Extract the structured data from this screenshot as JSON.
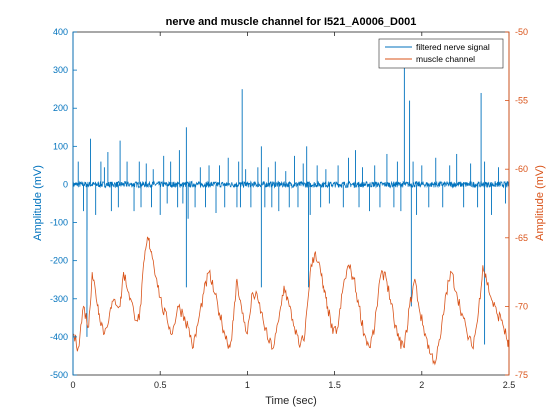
{
  "chart_data": {
    "type": "line",
    "title": "nerve and muscle channel for I521_A0006_D001",
    "xlabel": "Time (sec)",
    "ylabel_left": "Amplitude (mV)",
    "ylabel_right": "Amplitude (mV)",
    "xlim": [
      0,
      2.5
    ],
    "ylim_left": [
      -500,
      400
    ],
    "ylim_right": [
      -75,
      -50
    ],
    "xticks": [
      "0",
      "0.5",
      "1",
      "1.5",
      "2",
      "2.5"
    ],
    "yticks_left": [
      "400",
      "300",
      "200",
      "100",
      "0",
      "-100",
      "-200",
      "-300",
      "-400",
      "-500"
    ],
    "yticks_right": [
      "-50",
      "-55",
      "-60",
      "-65",
      "-70",
      "-75"
    ],
    "legend_position": "top-right",
    "grid": false,
    "colors": {
      "left_axis": "#0072BD",
      "right_axis": "#D95319",
      "frame": "#262626"
    },
    "series": [
      {
        "name": "filtered nerve signal",
        "axis": "left",
        "color": "#0072BD",
        "baseline_noise_mV": 8,
        "spikes": [
          [
            0.03,
            60
          ],
          [
            0.06,
            -70
          ],
          [
            0.08,
            -120
          ],
          [
            0.1,
            120
          ],
          [
            0.13,
            -80
          ],
          [
            0.16,
            60
          ],
          [
            0.18,
            45
          ],
          [
            0.2,
            85
          ],
          [
            0.22,
            -70
          ],
          [
            0.26,
            -60
          ],
          [
            0.27,
            115
          ],
          [
            0.31,
            60
          ],
          [
            0.35,
            -70
          ],
          [
            0.38,
            60
          ],
          [
            0.39,
            -60
          ],
          [
            0.42,
            55
          ],
          [
            0.45,
            -60
          ],
          [
            0.46,
            40
          ],
          [
            0.5,
            -80
          ],
          [
            0.52,
            75
          ],
          [
            0.54,
            -50
          ],
          [
            0.56,
            60
          ],
          [
            0.6,
            -60
          ],
          [
            0.61,
            90
          ],
          [
            0.63,
            -50
          ],
          [
            0.65,
            150
          ],
          [
            0.66,
            -90
          ],
          [
            0.7,
            -60
          ],
          [
            0.73,
            45
          ],
          [
            0.76,
            -60
          ],
          [
            0.78,
            50
          ],
          [
            0.82,
            -75
          ],
          [
            0.84,
            50
          ],
          [
            0.87,
            -60
          ],
          [
            0.89,
            70
          ],
          [
            0.94,
            -60
          ],
          [
            0.95,
            60
          ],
          [
            0.96,
            -60
          ],
          [
            0.97,
            250
          ],
          [
            0.99,
            40
          ],
          [
            1.02,
            -60
          ],
          [
            1.06,
            45
          ],
          [
            1.08,
            100
          ],
          [
            1.1,
            -60
          ],
          [
            1.12,
            45
          ],
          [
            1.14,
            -60
          ],
          [
            1.16,
            60
          ],
          [
            1.18,
            -70
          ],
          [
            1.22,
            35
          ],
          [
            1.24,
            -60
          ],
          [
            1.27,
            75
          ],
          [
            1.29,
            -60
          ],
          [
            1.32,
            55
          ],
          [
            1.34,
            100
          ],
          [
            1.36,
            -80
          ],
          [
            1.4,
            50
          ],
          [
            1.42,
            -60
          ],
          [
            1.45,
            40
          ],
          [
            1.47,
            -50
          ],
          [
            1.52,
            50
          ],
          [
            1.55,
            -60
          ],
          [
            1.58,
            70
          ],
          [
            1.62,
            90
          ],
          [
            1.64,
            -60
          ],
          [
            1.66,
            45
          ],
          [
            1.7,
            -70
          ],
          [
            1.73,
            50
          ],
          [
            1.76,
            -60
          ],
          [
            1.8,
            80
          ],
          [
            1.84,
            -60
          ],
          [
            1.86,
            60
          ],
          [
            1.88,
            -70
          ],
          [
            1.9,
            320
          ],
          [
            1.93,
            220
          ],
          [
            1.95,
            60
          ],
          [
            1.97,
            -80
          ],
          [
            2.0,
            50
          ],
          [
            2.04,
            -60
          ],
          [
            2.08,
            70
          ],
          [
            2.12,
            -60
          ],
          [
            2.16,
            50
          ],
          [
            2.2,
            80
          ],
          [
            2.24,
            -60
          ],
          [
            2.28,
            55
          ],
          [
            2.32,
            -60
          ],
          [
            2.34,
            240
          ],
          [
            2.36,
            60
          ],
          [
            2.4,
            -80
          ],
          [
            2.44,
            45
          ],
          [
            2.48,
            -50
          ]
        ],
        "large_negative_spikes": [
          [
            0.08,
            -400
          ],
          [
            0.65,
            -270
          ],
          [
            1.08,
            -270
          ],
          [
            1.35,
            -270
          ],
          [
            1.94,
            -320
          ],
          [
            2.36,
            -420
          ]
        ]
      },
      {
        "name": "muscle channel",
        "axis": "right",
        "color": "#D95319",
        "x": [
          0.0,
          0.03,
          0.06,
          0.09,
          0.11,
          0.13,
          0.15,
          0.18,
          0.21,
          0.24,
          0.27,
          0.29,
          0.32,
          0.35,
          0.38,
          0.41,
          0.43,
          0.45,
          0.48,
          0.51,
          0.54,
          0.57,
          0.6,
          0.63,
          0.66,
          0.69,
          0.72,
          0.75,
          0.78,
          0.81,
          0.84,
          0.87,
          0.9,
          0.92,
          0.94,
          0.97,
          1.0,
          1.03,
          1.06,
          1.09,
          1.12,
          1.15,
          1.18,
          1.21,
          1.24,
          1.27,
          1.3,
          1.33,
          1.36,
          1.39,
          1.42,
          1.44,
          1.46,
          1.49,
          1.52,
          1.55,
          1.58,
          1.61,
          1.64,
          1.67,
          1.7,
          1.73,
          1.76,
          1.79,
          1.82,
          1.84,
          1.87,
          1.9,
          1.93,
          1.96,
          1.99,
          2.02,
          2.05,
          2.08,
          2.11,
          2.14,
          2.17,
          2.2,
          2.23,
          2.26,
          2.29,
          2.32,
          2.35,
          2.37,
          2.4,
          2.43,
          2.46,
          2.49,
          2.5
        ],
        "values": [
          -72,
          -73,
          -70,
          -71.5,
          -67.5,
          -69,
          -70.5,
          -72,
          -70.5,
          -69.5,
          -70,
          -67.5,
          -69,
          -70.5,
          -71,
          -66.5,
          -65,
          -66,
          -68,
          -70,
          -71,
          -72,
          -70,
          -70.5,
          -71.5,
          -73,
          -71,
          -69,
          -67.5,
          -69,
          -70.5,
          -72,
          -73,
          -71,
          -68,
          -70.5,
          -72,
          -69,
          -69.5,
          -71,
          -72.5,
          -73,
          -71,
          -68.5,
          -70,
          -71.5,
          -73,
          -72,
          -67.5,
          -66,
          -67.5,
          -69,
          -70,
          -72,
          -71.5,
          -68.5,
          -67,
          -68,
          -70,
          -72,
          -73,
          -71.5,
          -68,
          -67.5,
          -69.5,
          -71,
          -72.5,
          -73,
          -70,
          -68,
          -70.5,
          -72,
          -73.5,
          -74,
          -72,
          -69,
          -67.5,
          -69,
          -70.5,
          -72,
          -73,
          -71,
          -67,
          -68,
          -69.5,
          -70.5,
          -71,
          -72.5,
          -73
        ]
      }
    ]
  }
}
